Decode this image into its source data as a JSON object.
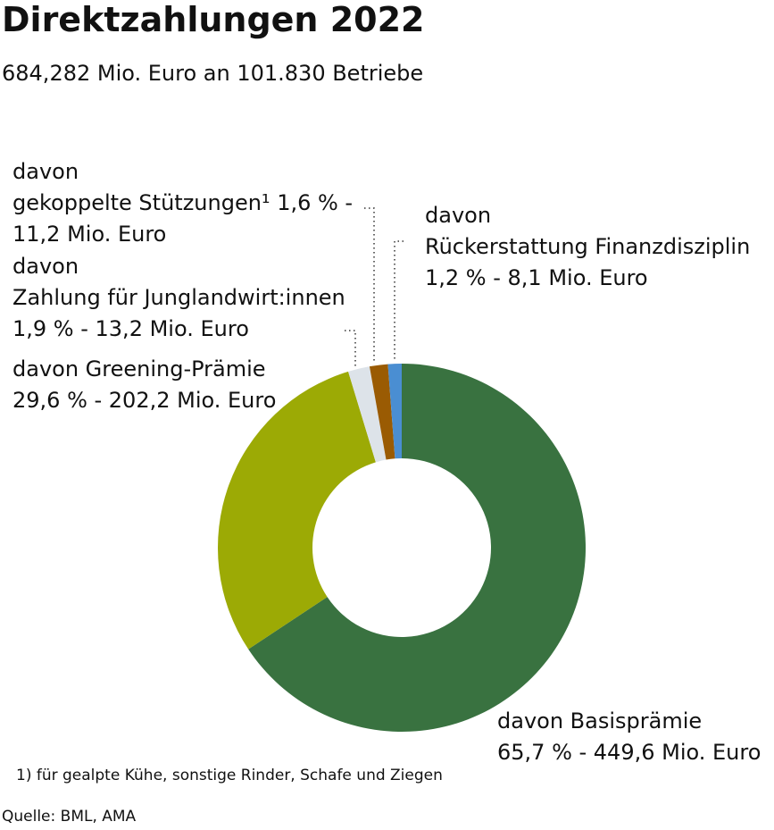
{
  "chart_data": {
    "type": "donut",
    "title": "Direktzahlungen 2022",
    "subtitle": "684,282 Mio. Euro an 101.830 Betriebe",
    "categories": [
      "davon Basisprämie",
      "davon Greening-Prämie",
      "davon\nZahlung für Junglandwirt:innen",
      "davon\ngekoppelte Stützungen¹",
      "davon\nRückerstattung Finanzdisziplin"
    ],
    "values": [
      65.7,
      29.6,
      1.9,
      1.6,
      1.2
    ],
    "value_labels": [
      "65,7 % - 449,6 Mio. Euro",
      "29,6 % - 202,2 Mio. Euro",
      "1,9 % - 13,2 Mio. Euro",
      "1,6 % - 11,2 Mio. Euro",
      "1,2 % - 8,1 Mio. Euro"
    ],
    "colors": [
      "#397240",
      "#9caa05",
      "#dde3e9",
      "#9a5b03",
      "#4a8ed2"
    ],
    "footnote": "1) für gealpte Kühe, sonstige Rinder, Schafe und Ziegen",
    "source": "Quelle: BML, AMA"
  }
}
